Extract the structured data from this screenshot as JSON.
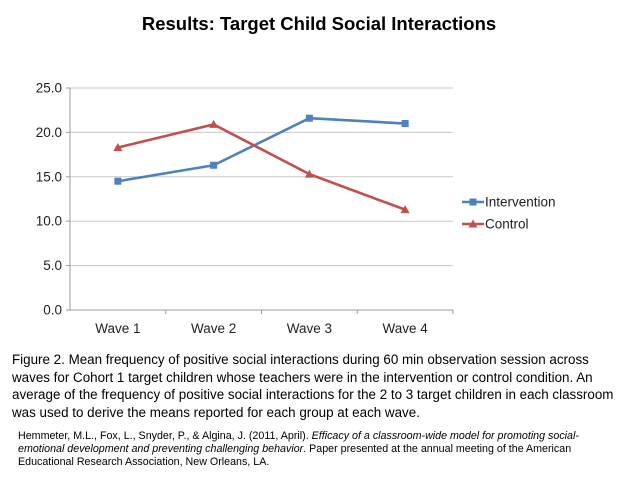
{
  "title": "Results: Target Child Social Interactions",
  "chart_data": {
    "type": "line",
    "categories": [
      "Wave 1",
      "Wave 2",
      "Wave 3",
      "Wave 4"
    ],
    "series": [
      {
        "name": "Intervention",
        "values": [
          14.5,
          16.3,
          21.6,
          21.0
        ],
        "color": "#4F81BD",
        "marker": "square"
      },
      {
        "name": "Control",
        "values": [
          18.3,
          20.9,
          15.3,
          11.3
        ],
        "color": "#C0504D",
        "marker": "triangle"
      }
    ],
    "title": "",
    "xlabel": "",
    "ylabel": "",
    "ylim": [
      0,
      25
    ],
    "ytick_step": 5,
    "ytick_labels": [
      "0.0",
      "5.0",
      "10.0",
      "15.0",
      "20.0",
      "25.0"
    ],
    "grid": true,
    "legend_position": "right",
    "style": {
      "grid_color": "#c9c9c9",
      "axis_color": "#9b9b9b",
      "label_color": "#1f1f1f"
    }
  },
  "caption": "Figure 2. Mean frequency of positive social interactions during 60 min observation session across waves for Cohort 1 target children whose teachers were in the intervention or control condition. An average of the frequency of positive social interactions for the 2 to 3 target children in each classroom was used to derive the means reported for each group at each wave.",
  "citation": {
    "before": "Hemmeter, M.L., Fox, L., Snyder, P., & Algina, J. (2011, April). ",
    "italic": "Efficacy of a classroom-wide model for promoting social-emotional development and preventing challenging behavior",
    "after": ". Paper presented at the annual meeting of the American Educational Research Association, New Orleans, LA."
  }
}
